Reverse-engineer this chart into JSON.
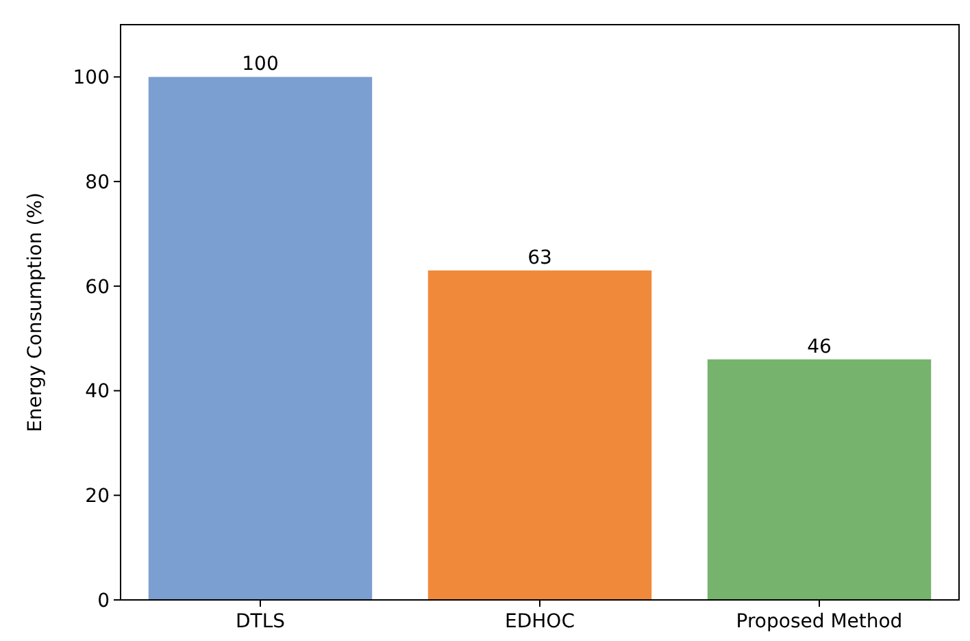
{
  "chart_data": {
    "type": "bar",
    "ylabel": "Energy Consumption (%)",
    "categories": [
      "DTLS",
      "EDHOC",
      "Proposed Method"
    ],
    "values": [
      100,
      63,
      46
    ],
    "colors": [
      "#7b9fd0",
      "#f08a3a",
      "#76b36c"
    ],
    "ylim": [
      0,
      110
    ],
    "yticks": [
      0,
      20,
      40,
      60,
      80,
      100
    ],
    "data_labels": true
  }
}
